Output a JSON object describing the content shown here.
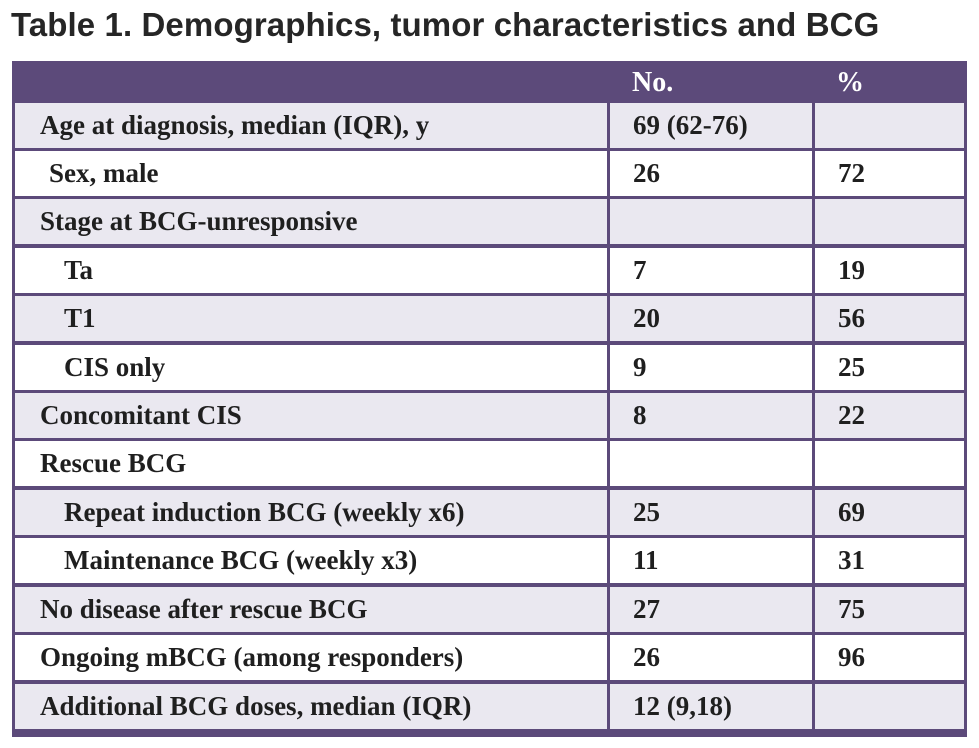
{
  "title": "Table 1. Demographics, tumor characteristics and BCG",
  "header": {
    "label": "",
    "no": "No.",
    "pct": "%"
  },
  "rows": [
    {
      "label": "Age at diagnosis, median (IQR), y",
      "no": "69 (62-76)",
      "pct": ""
    },
    {
      "label": "Sex, male",
      "no": "26",
      "pct": "72"
    },
    {
      "label": "Stage at BCG-unresponsive",
      "no": "",
      "pct": ""
    },
    {
      "label": "Ta",
      "no": "7",
      "pct": "19"
    },
    {
      "label": "T1",
      "no": "20",
      "pct": "56"
    },
    {
      "label": "CIS only",
      "no": "9",
      "pct": "25"
    },
    {
      "label": "Concomitant CIS",
      "no": "8",
      "pct": "22"
    },
    {
      "label": "Rescue BCG",
      "no": "",
      "pct": ""
    },
    {
      "label": "Repeat induction BCG (weekly x6)",
      "no": "25",
      "pct": "69"
    },
    {
      "label": "Maintenance BCG (weekly x3)",
      "no": "11",
      "pct": "31"
    },
    {
      "label": "No disease after rescue BCG",
      "no": "27",
      "pct": "75"
    },
    {
      "label": "Ongoing mBCG (among responders)",
      "no": "26",
      "pct": "96"
    },
    {
      "label": "Additional BCG doses, median (IQR)",
      "no": "12 (9,18)",
      "pct": ""
    }
  ],
  "colors": {
    "header_bg": "#5c4a7a",
    "band_row": "#eae8f0",
    "plain_row": "#ffffff",
    "title_text": "#262626"
  }
}
